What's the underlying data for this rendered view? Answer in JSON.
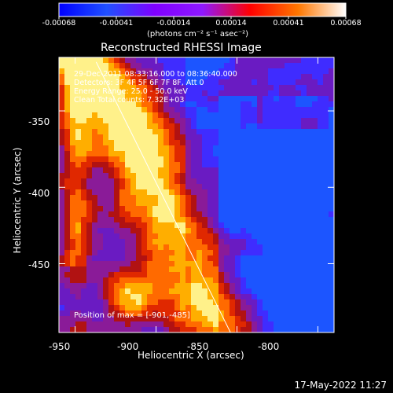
{
  "colorbar": {
    "ticks": [
      "-0.00068",
      "-0.00041",
      "-0.00014",
      "0.00014",
      "0.00041",
      "0.00068"
    ],
    "unit_label": "(photons cm⁻² s⁻¹ asec⁻²)",
    "stops": [
      "#0000ff",
      "#2050ff",
      "#7f00ff",
      "#8e18ff",
      "#ff0000",
      "#ff7700",
      "#ffffff"
    ]
  },
  "plot": {
    "title": "Reconstructed RHESSI Image",
    "xlabel": "Heliocentric X (arcsec)",
    "ylabel": "Heliocentric Y (arcsec)"
  },
  "header_info": {
    "time_range": "29-Dec-2011 08:33:16.000 to 08:36:40.000",
    "detectors": "Detectors: 3F 4F 5F 6F 7F 8F, Att 0",
    "energy": "Energy Range: 25.0 - 50.0 keV",
    "clean": "Clean    Total counts: 7.32E+03"
  },
  "annotation": {
    "position_text": "Position of max = [-901,-485]"
  },
  "footer": {
    "date_stamp": "17-May-2022 11:27"
  },
  "chart_data": {
    "type": "heatmap",
    "title": "Reconstructed RHESSI Image",
    "xlabel": "Heliocentric X (arcsec)",
    "ylabel": "Heliocentric Y (arcsec)",
    "xlim": [
      -960,
      -790
    ],
    "ylim": [
      -495,
      -315
    ],
    "x_ticks": [
      -950,
      -900,
      -850,
      -800
    ],
    "y_ticks": [
      -350,
      -400,
      -450
    ],
    "colorbar_range": [
      -0.00068,
      0.00068
    ],
    "colorbar_ticks": [
      -0.00068,
      -0.00041,
      -0.00014,
      0.00014,
      0.00041,
      0.00068
    ],
    "limb_line": [
      {
        "x": -937,
        "y": -318
      },
      {
        "x": -854,
        "y": -495
      }
    ],
    "max_position": {
      "x": -901,
      "y": -485
    },
    "grid": false
  }
}
